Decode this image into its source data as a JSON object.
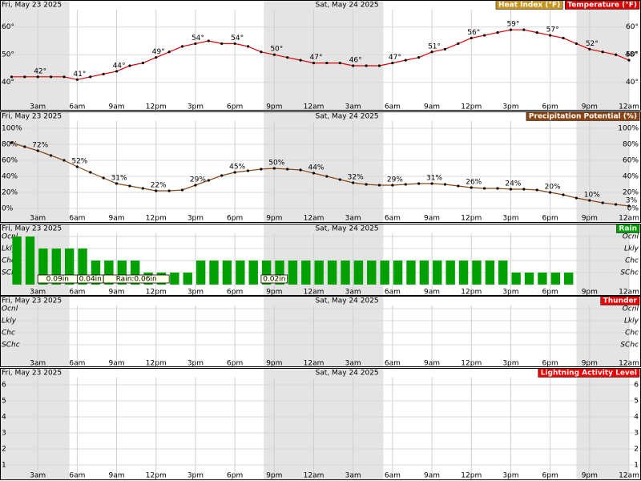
{
  "time_axis": {
    "xlim": [
      0,
      48
    ],
    "xticks": [
      {
        "value": 3,
        "label": "3am"
      },
      {
        "value": 6,
        "label": "6am"
      },
      {
        "value": 9,
        "label": "9am"
      },
      {
        "value": 12,
        "label": "12pm"
      },
      {
        "value": 15,
        "label": "3pm"
      },
      {
        "value": 18,
        "label": "6pm"
      },
      {
        "value": 21,
        "label": "9pm"
      },
      {
        "value": 24,
        "label": "12am"
      },
      {
        "value": 27,
        "label": "3am"
      },
      {
        "value": 30,
        "label": "6am"
      },
      {
        "value": 33,
        "label": "9am"
      },
      {
        "value": 36,
        "label": "12pm"
      },
      {
        "value": 39,
        "label": "3pm"
      },
      {
        "value": 42,
        "label": "6pm"
      },
      {
        "value": 45,
        "label": "9pm"
      },
      {
        "value": 48,
        "label": "12am"
      }
    ],
    "dates": [
      {
        "value": 0,
        "label": "Fri, May 23 2025"
      },
      {
        "value": 24,
        "label": "Sat, May 24 2025"
      }
    ],
    "night": [
      [
        0,
        5.4
      ],
      [
        20.2,
        29.3
      ],
      [
        44.0,
        48
      ]
    ]
  },
  "chart_data": [
    {
      "type": "line",
      "ylim": [
        35,
        66
      ],
      "yticks": [
        {
          "value": 60,
          "label": "60°"
        },
        {
          "value": 50,
          "label": "50°"
        },
        {
          "value": 40,
          "label": "40°"
        }
      ],
      "x": [
        1,
        2,
        3,
        4,
        5,
        6,
        7,
        8,
        9,
        10,
        11,
        12,
        13,
        14,
        15,
        16,
        17,
        18,
        19,
        20,
        21,
        22,
        23,
        24,
        25,
        26,
        27,
        28,
        29,
        30,
        31,
        32,
        33,
        34,
        35,
        36,
        37,
        38,
        39,
        40,
        41,
        42,
        43,
        44,
        45,
        46,
        47,
        48
      ],
      "series": [
        {
          "name": "Heat Index (°F)",
          "color": "#c8961e",
          "values": [
            null,
            null,
            null,
            null,
            null,
            null,
            null,
            null,
            null,
            null,
            null,
            null,
            null,
            null,
            null,
            null,
            null,
            null,
            null,
            null,
            null,
            null,
            null,
            null,
            null,
            null,
            null,
            null,
            null,
            null,
            null,
            null,
            null,
            null,
            null,
            null,
            null,
            null,
            null,
            null,
            null,
            null,
            null,
            null,
            null,
            null,
            null,
            null
          ]
        },
        {
          "name": "Temperature (°F)",
          "color": "#dd0000",
          "values": [
            42,
            42,
            42,
            42,
            42,
            41,
            42,
            43,
            44,
            46,
            47,
            49,
            51,
            53,
            54,
            55,
            54,
            54,
            53,
            51,
            50,
            49,
            48,
            47,
            47,
            47,
            46,
            46,
            46,
            47,
            48,
            49,
            51,
            52,
            54,
            56,
            57,
            58,
            59,
            59,
            58,
            57,
            56,
            54,
            52,
            51,
            50,
            48
          ],
          "value_labels": [
            null,
            null,
            "42°",
            null,
            null,
            "41°",
            null,
            null,
            "44°",
            null,
            null,
            "49°",
            null,
            null,
            "54°",
            null,
            null,
            "54°",
            null,
            null,
            "50°",
            null,
            null,
            "47°",
            null,
            null,
            "46°",
            null,
            null,
            "47°",
            null,
            null,
            "51°",
            null,
            null,
            "56°",
            null,
            null,
            "59°",
            null,
            null,
            "57°",
            null,
            null,
            "52°",
            null,
            null,
            "48°"
          ]
        }
      ]
    },
    {
      "type": "line",
      "ylim": [
        -15,
        110
      ],
      "yticks": [
        {
          "value": 100,
          "label": "100%"
        },
        {
          "value": 80,
          "label": "80%"
        },
        {
          "value": 60,
          "label": "60%"
        },
        {
          "value": 40,
          "label": "40%"
        },
        {
          "value": 20,
          "label": "20%"
        },
        {
          "value": 0,
          "label": "0%"
        }
      ],
      "x": [
        1,
        2,
        3,
        4,
        5,
        6,
        7,
        8,
        9,
        10,
        11,
        12,
        13,
        14,
        15,
        16,
        17,
        18,
        19,
        20,
        21,
        22,
        23,
        24,
        25,
        26,
        27,
        28,
        29,
        30,
        31,
        32,
        33,
        34,
        35,
        36,
        37,
        38,
        39,
        40,
        41,
        42,
        43,
        44,
        45,
        46,
        47,
        48
      ],
      "series": [
        {
          "name": "Precipitation Potential (%)",
          "color": "#8b4513",
          "values": [
            82,
            77,
            72,
            66,
            60,
            52,
            45,
            38,
            31,
            28,
            25,
            22,
            22,
            23,
            29,
            35,
            41,
            45,
            47,
            49,
            50,
            49,
            48,
            44,
            40,
            36,
            32,
            30,
            29,
            29,
            30,
            31,
            31,
            30,
            28,
            26,
            25,
            25,
            24,
            24,
            23,
            20,
            17,
            13,
            10,
            7,
            5,
            3
          ],
          "value_labels": [
            null,
            null,
            "72%",
            null,
            null,
            "52%",
            null,
            null,
            "31%",
            null,
            null,
            "22%",
            null,
            null,
            "29%",
            null,
            null,
            "45%",
            null,
            null,
            "50%",
            null,
            null,
            "44%",
            null,
            null,
            "32%",
            null,
            null,
            "29%",
            null,
            null,
            "31%",
            null,
            null,
            "26%",
            null,
            null,
            "24%",
            null,
            null,
            "20%",
            null,
            null,
            "10%",
            null,
            null,
            "3%"
          ]
        }
      ]
    },
    {
      "type": "bar",
      "ylim": [
        0,
        5
      ],
      "yticks": [
        {
          "value": 4,
          "label": "Ocnl"
        },
        {
          "value": 3,
          "label": "Lkly"
        },
        {
          "value": 2,
          "label": "Chc"
        },
        {
          "value": 1,
          "label": "SChc"
        }
      ],
      "x": [
        1,
        2,
        3,
        4,
        5,
        6,
        7,
        8,
        9,
        10,
        11,
        12,
        13,
        14,
        15,
        16,
        17,
        18,
        19,
        20,
        21,
        22,
        23,
        24,
        25,
        26,
        27,
        28,
        29,
        30,
        31,
        32,
        33,
        34,
        35,
        36,
        37,
        38,
        39,
        40,
        41,
        42,
        43,
        44,
        45,
        46,
        47,
        48
      ],
      "series": [
        {
          "name": "Rain",
          "color": "#00a000",
          "values": [
            4,
            4,
            3,
            3,
            3,
            3,
            2,
            2,
            2,
            2,
            1,
            1,
            1,
            1,
            2,
            2,
            2,
            2,
            2,
            2,
            2,
            2,
            2,
            2,
            2,
            2,
            2,
            2,
            2,
            2,
            2,
            2,
            2,
            2,
            2,
            2,
            2,
            2,
            1,
            1,
            1,
            1,
            1,
            0,
            0,
            0,
            0,
            0
          ]
        }
      ],
      "annotations": [
        {
          "value": 0.09,
          "label": "0.09in",
          "x": [
            3,
            6
          ]
        },
        {
          "value": 0.04,
          "label": "0.04in",
          "x": [
            6,
            8
          ]
        },
        {
          "value": 0.06,
          "label": "Rain:0.06in",
          "x": [
            8,
            13
          ]
        },
        {
          "value": 0.02,
          "label": "0.02in",
          "x": [
            20,
            22
          ]
        }
      ]
    },
    {
      "type": "bar",
      "ylim": [
        0,
        5
      ],
      "yticks": [
        {
          "value": 4,
          "label": "Ocnl"
        },
        {
          "value": 3,
          "label": "Lkly"
        },
        {
          "value": 2,
          "label": "Chc"
        },
        {
          "value": 1,
          "label": "SChc"
        }
      ],
      "x": [
        1,
        2,
        3,
        4,
        5,
        6,
        7,
        8,
        9,
        10,
        11,
        12,
        13,
        14,
        15,
        16,
        17,
        18,
        19,
        20,
        21,
        22,
        23,
        24,
        25,
        26,
        27,
        28,
        29,
        30,
        31,
        32,
        33,
        34,
        35,
        36,
        37,
        38,
        39,
        40,
        41,
        42,
        43,
        44,
        45,
        46,
        47,
        48
      ],
      "series": [
        {
          "name": "Thunder",
          "color": "#ee0000",
          "values": [
            0,
            0,
            0,
            0,
            0,
            0,
            0,
            0,
            0,
            0,
            0,
            0,
            0,
            0,
            0,
            0,
            0,
            0,
            0,
            0,
            0,
            0,
            0,
            0,
            0,
            0,
            0,
            0,
            0,
            0,
            0,
            0,
            0,
            0,
            0,
            0,
            0,
            0,
            0,
            0,
            0,
            0,
            0,
            0,
            0,
            0,
            0,
            0
          ]
        }
      ]
    },
    {
      "type": "line",
      "ylim": [
        0,
        7
      ],
      "yticks": [
        6,
        5,
        4,
        3,
        2,
        1
      ],
      "series": [
        {
          "name": "Lightning Activity Level",
          "color": "#ee0000"
        }
      ]
    }
  ]
}
